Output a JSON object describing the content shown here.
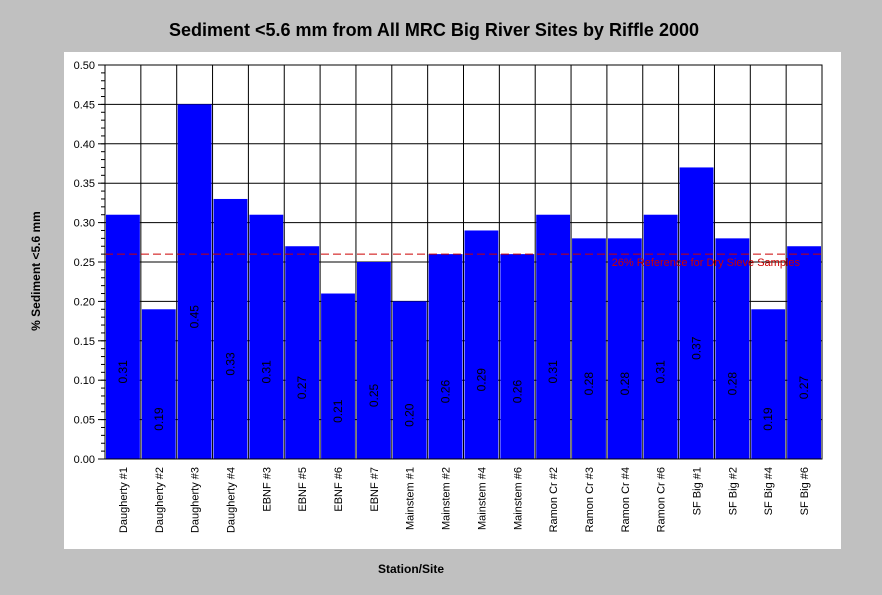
{
  "chart_data": {
    "type": "bar",
    "title": "Sediment <5.6 mm from All MRC Big River Sites by Riffle 2000",
    "xlabel": "Station/Site",
    "ylabel": "% Sediment <5.6 mm",
    "ylim": [
      0,
      0.5
    ],
    "ytick_step": 0.05,
    "grid": true,
    "categories": [
      "Daugherty #1",
      "Daugherty #2",
      "Daugherty #3",
      "Daugherty #4",
      "EBNF #3",
      "EBNF #5",
      "EBNF #6",
      "EBNF #7",
      "Mainstem #1",
      "Mainstem #2",
      "Mainstem #4",
      "Mainstem #6",
      "Ramon Cr #2",
      "Ramon Cr #3",
      "Ramon Cr #4",
      "Ramon Cr #6",
      "SF Big #1",
      "SF Big #2",
      "SF Big #4",
      "SF Big #6"
    ],
    "values": [
      0.31,
      0.19,
      0.45,
      0.33,
      0.31,
      0.27,
      0.21,
      0.25,
      0.2,
      0.26,
      0.29,
      0.26,
      0.31,
      0.28,
      0.28,
      0.31,
      0.37,
      0.28,
      0.19,
      0.27
    ],
    "data_labels": [
      "0.31",
      "0.19",
      "0.45",
      "0.33",
      "0.31",
      "0.27",
      "0.21",
      "0.25",
      "0.20",
      "0.26",
      "0.29",
      "0.26",
      "0.31",
      "0.28",
      "0.28",
      "0.31",
      "0.37",
      "0.28",
      "0.19",
      "0.27"
    ],
    "reference_line": {
      "value": 0.26,
      "label": "26% Reference for Dry Sieve Samples"
    },
    "colors": {
      "bar": "#0000ff",
      "reference": "#cc0000",
      "plot_bg": "#ffffff",
      "figure_bg": "#c0c0c0"
    }
  }
}
